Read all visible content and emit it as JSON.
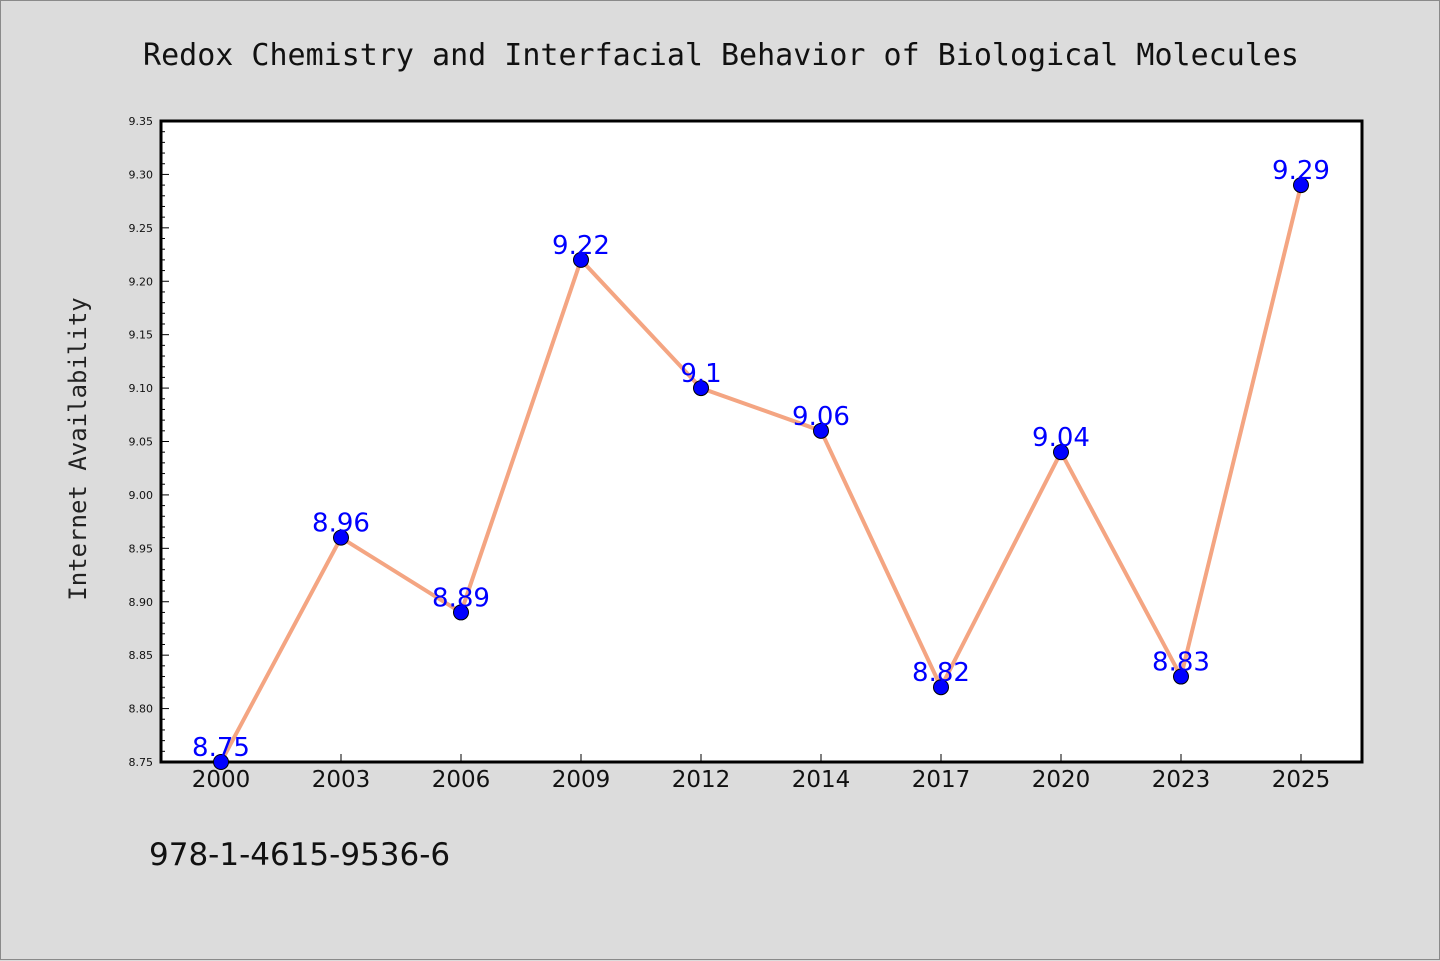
{
  "chart_data": {
    "type": "line",
    "title": "Redox Chemistry and Interfacial Behavior of Biological Molecules",
    "xlabel": "",
    "ylabel": "Internet Availability",
    "categories": [
      "2000",
      "2003",
      "2006",
      "2009",
      "2012",
      "2014",
      "2017",
      "2020",
      "2023",
      "2025"
    ],
    "series": [
      {
        "values": [
          8.75,
          8.96,
          8.89,
          9.22,
          9.1,
          9.06,
          8.82,
          9.04,
          8.83,
          9.29
        ],
        "data_labels": [
          "8.75",
          "8.96",
          "8.89",
          "9.22",
          "9.1",
          "9.06",
          "8.82",
          "9.04",
          "8.83",
          "9.29"
        ],
        "line_color": "#f4a582",
        "marker_color": "#0000ff"
      }
    ],
    "ylim": [
      8.75,
      9.35
    ],
    "yticks": [
      "8.75",
      "8.80",
      "8.85",
      "8.90",
      "8.95",
      "9.00",
      "9.05",
      "9.10",
      "9.15",
      "9.20",
      "9.25",
      "9.30",
      "9.35"
    ],
    "grid": false,
    "legend": "none"
  },
  "footer": {
    "isbn": "978-1-4615-9536-6"
  },
  "colors": {
    "background": "#dcdcdc",
    "plot_background": "#ffffff"
  }
}
